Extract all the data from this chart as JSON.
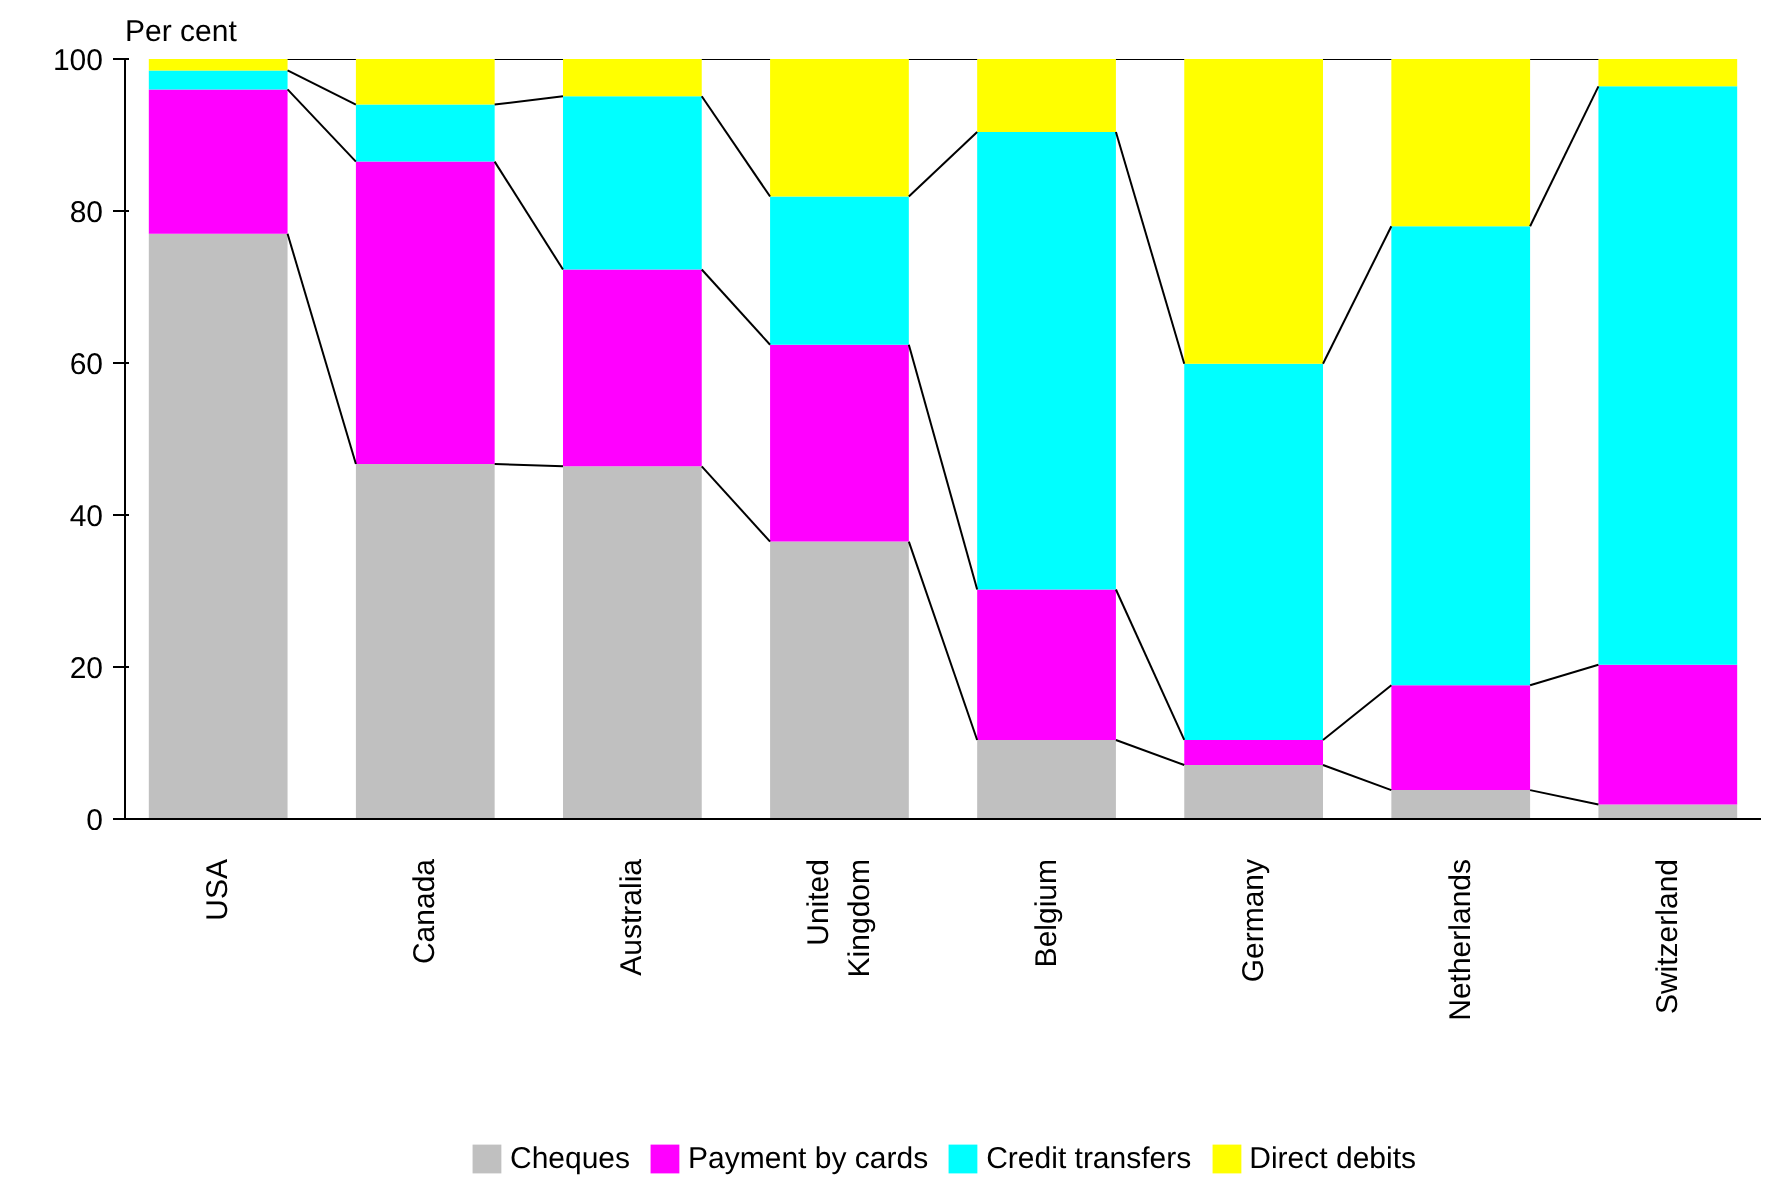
{
  "chart_data": {
    "type": "bar",
    "stacked": true,
    "ylabel": "Per cent",
    "categories": [
      "USA",
      "Canada",
      "Australia",
      "United Kingdom",
      "Belgium",
      "Germany",
      "Netherlands",
      "Switzerland"
    ],
    "series": [
      {
        "name": "Cheques",
        "color": "#c0c0c0",
        "values": [
          77,
          46.7,
          46.4,
          36.5,
          10.4,
          7.1,
          3.8,
          1.9
        ]
      },
      {
        "name": "Payment by cards",
        "color": "#ff00ff",
        "values": [
          19,
          39.8,
          25.9,
          25.9,
          19.8,
          3.3,
          13.8,
          18.4
        ]
      },
      {
        "name": "Credit transfers",
        "color": "#00ffff",
        "values": [
          2.5,
          7.5,
          22.8,
          19.5,
          60.2,
          49.5,
          60.4,
          76.1
        ]
      },
      {
        "name": "Direct debits",
        "color": "#ffff00",
        "values": [
          1.5,
          6,
          4.9,
          18.1,
          9.6,
          40.1,
          22,
          3.6
        ]
      }
    ],
    "ylim": [
      0,
      100
    ],
    "yticks": [
      0,
      20,
      40,
      60,
      80,
      100
    ],
    "grid": false,
    "legend": "bottom"
  }
}
